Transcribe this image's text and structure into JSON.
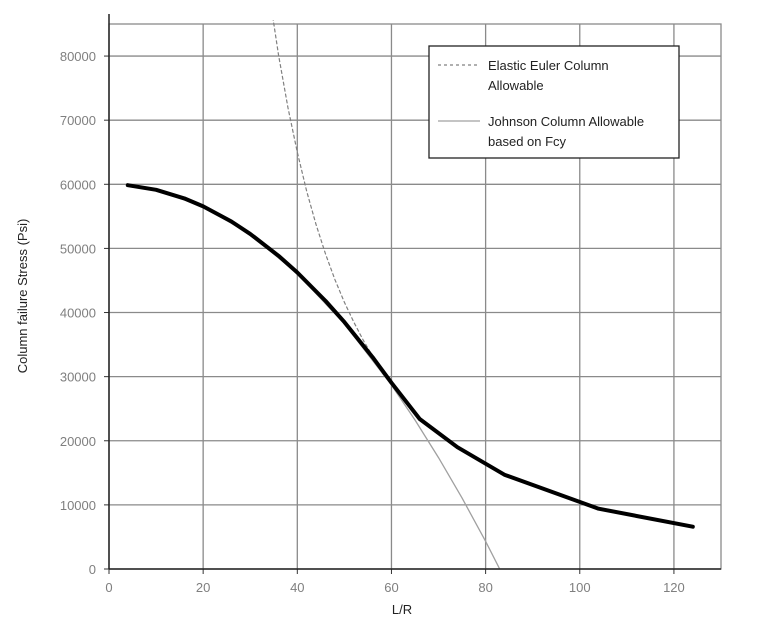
{
  "chart_data": {
    "type": "line",
    "title": "",
    "xlabel": "L/R",
    "ylabel": "Column failure Stress (Psi)",
    "xlim": [
      0,
      130
    ],
    "ylim": [
      0,
      85000
    ],
    "xticks": [
      0,
      20,
      40,
      60,
      80,
      100,
      120
    ],
    "yticks": [
      0,
      10000,
      20000,
      30000,
      40000,
      50000,
      60000,
      70000,
      80000
    ],
    "grid": true,
    "legend_position": "top-right",
    "series": [
      {
        "name": "Elastic Euler Column Allowable",
        "style": "dashed",
        "color": "#808080",
        "x": [
          34.6,
          36,
          38,
          40,
          42,
          44,
          46,
          48,
          50,
          52,
          54,
          56,
          58
        ],
        "y": [
          87000,
          80200,
          72000,
          65000,
          58900,
          53700,
          49100,
          45100,
          41600,
          38500,
          35700,
          33200,
          30900
        ]
      },
      {
        "name": "Johnson Column Allowable based on Fcy",
        "style": "solid-thin",
        "color": "#a0a0a0",
        "x": [
          4,
          10,
          20,
          30,
          40,
          50,
          60,
          65,
          70,
          75,
          80,
          83
        ],
        "y": [
          59860,
          59130,
          56520,
          52170,
          46080,
          38250,
          28680,
          23240,
          17370,
          11060,
          4320,
          0
        ]
      },
      {
        "style": "solid-thick",
        "color": "#000000",
        "x": [
          4,
          10,
          16,
          20,
          26,
          30,
          36,
          40,
          46,
          50,
          56,
          60,
          66,
          74,
          84,
          104,
          124
        ],
        "y": [
          59860,
          59140,
          57800,
          56560,
          54190,
          52260,
          48850,
          46240,
          41800,
          38500,
          33030,
          29040,
          23400,
          19000,
          14700,
          9400,
          6600
        ]
      }
    ]
  }
}
